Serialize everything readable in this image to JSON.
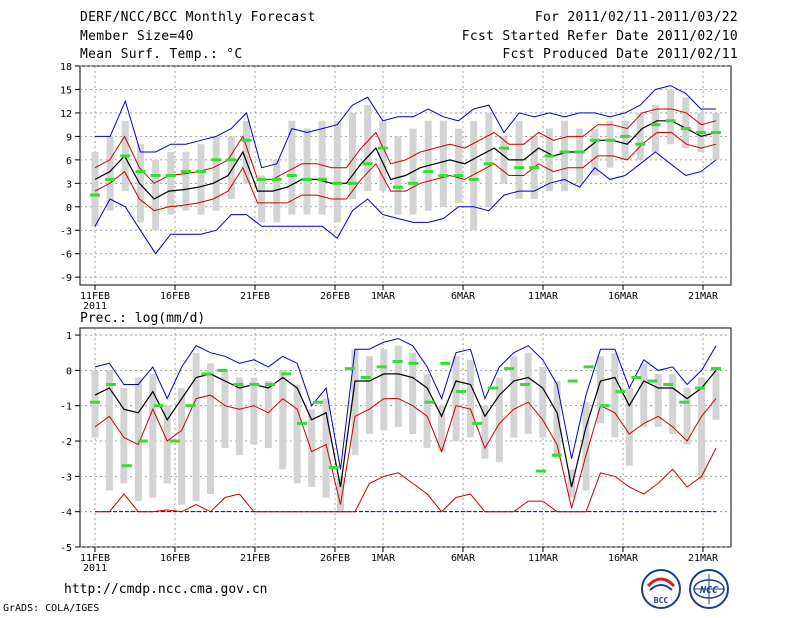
{
  "header": {
    "title": "DERF/NCC/BCC Monthly Forecast",
    "member_size": "Member Size=40",
    "variable1": "Mean Surf. Temp.: °C",
    "period": "For 2011/02/11-2011/03/22",
    "started": "Fcst Started Refer Date 2011/02/10",
    "produced": "Fcst Produced Date 2011/02/11"
  },
  "footer": {
    "url": "http://cmdp.ncc.cma.gov.cn",
    "credit": "GrADS: COLA/IGES",
    "logo_bcc": "BCC",
    "logo_ncc": "NCC"
  },
  "colors": {
    "mean": "#000000",
    "envelope": "#0000cc",
    "spread": "#cc0000",
    "box": "#d3d3d3",
    "obs": "#33dd33"
  },
  "chart_data": [
    {
      "type": "line",
      "title": "Mean Surf. Temp.: °C",
      "x_ticks": [
        "11FEB",
        "16FEB",
        "21FEB",
        "26FEB",
        "1MAR",
        "6MAR",
        "11MAR",
        "16MAR",
        "21MAR"
      ],
      "x_year": "2011",
      "yticks": [
        -9,
        -6,
        -3,
        0,
        3,
        6,
        9,
        12,
        15,
        18
      ],
      "ylim": [
        -10,
        18
      ],
      "days": 40,
      "series": [
        {
          "name": "mean",
          "values": [
            3.5,
            4.5,
            6.5,
            3,
            1,
            2,
            2.2,
            2.5,
            3,
            4,
            7,
            2,
            2,
            2.5,
            3.5,
            3.5,
            3,
            3,
            5.5,
            7.5,
            3.5,
            4,
            5,
            5.5,
            6,
            5.5,
            6.5,
            7.5,
            6,
            6,
            7.5,
            6.5,
            7,
            7,
            8.5,
            8.5,
            8,
            10,
            11,
            11,
            10,
            9,
            9.5
          ]
        },
        {
          "name": "upper",
          "values": [
            5,
            6,
            9,
            5,
            3,
            4,
            4.2,
            4.5,
            5,
            6,
            9,
            3.5,
            3.5,
            4.5,
            5.5,
            5.5,
            5,
            5,
            7.5,
            9.5,
            5.5,
            6,
            7,
            7.5,
            8,
            7.5,
            8.5,
            9.5,
            8,
            8,
            9.5,
            8.5,
            9,
            9,
            10.5,
            10.5,
            10,
            12,
            12.5,
            12.5,
            12,
            10.5,
            11
          ]
        },
        {
          "name": "lower",
          "values": [
            2,
            3,
            4.5,
            1,
            -0.5,
            0,
            0.2,
            0.5,
            1,
            2,
            5,
            0.5,
            0.5,
            0.5,
            1.5,
            1.5,
            1,
            1,
            3.5,
            5.5,
            2,
            2,
            3,
            3.5,
            4,
            3.5,
            4.5,
            5.5,
            4,
            4,
            5.5,
            4.5,
            5,
            5,
            6.5,
            6.5,
            6,
            8,
            9.5,
            9.5,
            8,
            7.5,
            8
          ]
        },
        {
          "name": "max",
          "values": [
            9,
            9,
            13.5,
            7,
            7,
            8,
            8,
            8.5,
            9,
            10,
            12,
            5,
            5.5,
            10,
            9.5,
            10,
            10.5,
            13,
            14,
            11,
            11.5,
            11.5,
            12.5,
            11.5,
            11,
            12.5,
            13,
            9.5,
            12,
            11.5,
            12,
            11.5,
            12,
            12,
            11.5,
            12,
            13,
            15,
            15.5,
            14.5,
            12.5,
            12.5
          ]
        },
        {
          "name": "min",
          "values": [
            -2.5,
            1,
            0,
            -3,
            -6,
            -3.5,
            -3.5,
            -3.5,
            -3,
            -1,
            -1,
            -2.5,
            -2.5,
            -2.5,
            -2.5,
            -2.5,
            -4,
            -0.5,
            1,
            -1,
            -1.5,
            -2,
            -2,
            -1.5,
            0,
            0,
            -0.5,
            1.5,
            2,
            2,
            3,
            3.5,
            2.5,
            5,
            3.5,
            4,
            5.5,
            7,
            5.5,
            4,
            4.5,
            6
          ]
        },
        {
          "name": "box_low",
          "values": [
            -2.5,
            -0.5,
            2,
            -2,
            -3,
            -1,
            -0.5,
            -1,
            -0.5,
            1,
            3,
            -2,
            -2,
            -1,
            -1,
            -1,
            -2,
            1,
            2,
            2,
            -1,
            -1,
            -0.5,
            0,
            0.5,
            -3,
            0,
            3,
            1,
            1,
            2,
            2,
            3,
            4,
            5,
            6,
            6,
            7,
            8,
            7.5,
            7,
            6
          ]
        },
        {
          "name": "box_high",
          "values": [
            7,
            9,
            11,
            8,
            6,
            7,
            7,
            8,
            9,
            9,
            11,
            4,
            6,
            11,
            10,
            11,
            11,
            12,
            13,
            11,
            9,
            10,
            11,
            11,
            10,
            11,
            12,
            9,
            11,
            9,
            10,
            11,
            10,
            10,
            11,
            11,
            12,
            13,
            15,
            14,
            12,
            12
          ]
        },
        {
          "name": "obs",
          "values": [
            1.5,
            3.5,
            6.5,
            4.5,
            4,
            4,
            4.5,
            4.5,
            6,
            6,
            8.5,
            3.5,
            3.5,
            4,
            3.5,
            3.5,
            3,
            3,
            5.5,
            7.5,
            2.5,
            3,
            4.5,
            4,
            4,
            3.5,
            5.5,
            7.5,
            5,
            5,
            6.5,
            7,
            7,
            8.5,
            8.5,
            9,
            8,
            10.5,
            11,
            10,
            9.5,
            9.5
          ]
        }
      ]
    },
    {
      "type": "line",
      "title": "Prec.: log(mm/d)",
      "x_ticks": [
        "11FEB",
        "16FEB",
        "21FEB",
        "26FEB",
        "1MAR",
        "6MAR",
        "11MAR",
        "16MAR",
        "21MAR"
      ],
      "x_year": "2011",
      "yticks": [
        -5,
        -4,
        -3,
        -2,
        -1,
        0,
        1
      ],
      "ylim": [
        -5,
        1.2
      ],
      "baseline": -4,
      "series": [
        {
          "name": "mean",
          "values": [
            -0.7,
            -0.5,
            -1.1,
            -1.2,
            -0.6,
            -1.4,
            -0.8,
            -0.2,
            -0.1,
            -0.3,
            -0.5,
            -0.4,
            -0.5,
            -0.2,
            -0.5,
            -1.4,
            -1.2,
            -3.3,
            -0.3,
            -0.3,
            -0.1,
            -0.1,
            -0.2,
            -0.5,
            -1.3,
            -0.3,
            -0.4,
            -1.3,
            -0.7,
            -0.3,
            -0.2,
            -0.5,
            -1.2,
            -3.3,
            -1.6,
            -0.3,
            -0.2,
            -1,
            -0.3,
            -0.5,
            -0.5,
            -0.8,
            -0.5,
            0
          ]
        },
        {
          "name": "max",
          "values": [
            0.1,
            0.2,
            -0.4,
            -0.4,
            0.1,
            -0.8,
            0.1,
            0.7,
            0.5,
            0.4,
            0.2,
            0.3,
            0.1,
            0.4,
            0.2,
            -1,
            -0.5,
            -2.8,
            0.6,
            0.6,
            0.8,
            0.9,
            0.7,
            0.1,
            -0.8,
            0.5,
            0.6,
            -0.8,
            0.1,
            0.5,
            0.7,
            0.3,
            -0.4,
            -2.5,
            -0.7,
            0.6,
            0.6,
            -0.5,
            0.3,
            0,
            0.1,
            -0.4,
            0,
            0.7
          ]
        },
        {
          "name": "upper",
          "values": [
            -1.6,
            -1.3,
            -1.9,
            -2.1,
            -1.1,
            -2,
            -1.7,
            -0.8,
            -0.7,
            -1,
            -1.1,
            -1,
            -1.2,
            -0.8,
            -1.1,
            -2.3,
            -2.1,
            -3.8,
            -1.3,
            -1.1,
            -0.8,
            -0.8,
            -1,
            -1.3,
            -2.3,
            -1,
            -1.1,
            -2.2,
            -1.5,
            -1.1,
            -0.9,
            -1.4,
            -2.1,
            -3.9,
            -2.4,
            -1,
            -1.2,
            -1.8,
            -1.5,
            -1.3,
            -1.6,
            -2,
            -1.3,
            -0.8
          ]
        },
        {
          "name": "lower",
          "values": [
            -4,
            -4,
            -3.5,
            -4,
            -4,
            -3.95,
            -4,
            -3.8,
            -4,
            -3.6,
            -3.5,
            -4,
            -4,
            -4,
            -4,
            -4,
            -4,
            -4,
            -4,
            -3.2,
            -3,
            -2.9,
            -3.2,
            -3.5,
            -4,
            -3.6,
            -3.5,
            -4,
            -4,
            -4,
            -3.7,
            -3.7,
            -4,
            -4,
            -4,
            -2.9,
            -3,
            -3.3,
            -3.5,
            -3.2,
            -2.8,
            -3.3,
            -3,
            -2.2
          ]
        },
        {
          "name": "box_low",
          "values": [
            -1.9,
            -3.4,
            -3.2,
            -3.7,
            -3.6,
            -3.2,
            -3.8,
            -3.7,
            -3.5,
            -2.2,
            -2.4,
            -2.1,
            -2.2,
            -2.8,
            -3.2,
            -3.3,
            -3.6,
            -4,
            -2.4,
            -1.8,
            -1.7,
            -1.6,
            -1.8,
            -2.2,
            -2.3,
            -2,
            -1.9,
            -2.5,
            -2.6,
            -1.9,
            -1.8,
            -1.9,
            -2.5,
            -3.6,
            -3.4,
            -1.5,
            -1.9,
            -2.7,
            -1.6,
            -1.6,
            -1.8,
            -2.1,
            -3.1,
            -1.4
          ]
        },
        {
          "name": "box_high",
          "values": [
            0,
            0,
            -0.5,
            -0.2,
            -0.1,
            -1,
            -0.5,
            0.5,
            0.2,
            0,
            -0.2,
            -0.2,
            -0.3,
            0,
            -0.4,
            -1.1,
            -0.8,
            -3,
            0.6,
            0.4,
            0.6,
            0.7,
            0.5,
            -0.1,
            -1,
            0.4,
            0.3,
            -1,
            -0.2,
            0.4,
            0.5,
            0.1,
            -0.3,
            -2.8,
            -0.9,
            0.4,
            0.5,
            -0.5,
            0.2,
            -0.1,
            -0.1,
            -0.5,
            -0.2,
            0.1
          ]
        },
        {
          "name": "obs",
          "values": [
            -0.9,
            -0.4,
            -2.7,
            -2,
            -1,
            -2,
            -1,
            -0.1,
            0,
            -0.4,
            -0.4,
            -0.4,
            -0.1,
            -1.5,
            -0.9,
            -2.75,
            0.05,
            -0.2,
            0.1,
            0.25,
            0.2,
            -0.9,
            0.2,
            -0.6,
            -1.5,
            -0.5,
            0.05,
            -0.4,
            -2.85,
            -2.4,
            -0.3,
            0.1,
            -1,
            -0.6,
            -0.2,
            -0.3,
            -0.4,
            -0.9,
            -0.5,
            0.05
          ]
        }
      ]
    }
  ]
}
